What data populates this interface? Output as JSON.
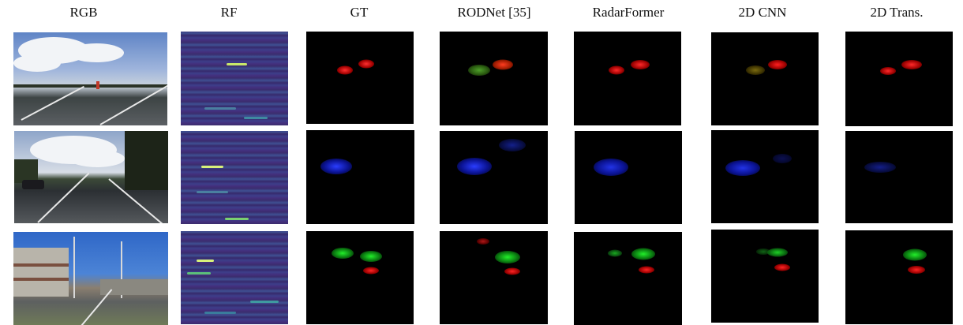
{
  "columns": [
    "RGB",
    "RF",
    "GT",
    "RODNet [35]",
    "RadarFormer",
    "2D CNN",
    "2D Trans."
  ],
  "colors": {
    "red": "#ff2020",
    "green": "#1fe02a",
    "blue": "#2a3dff",
    "rf_dark": "#3a2d6e",
    "rf_highlight": "#d8f07a"
  }
}
